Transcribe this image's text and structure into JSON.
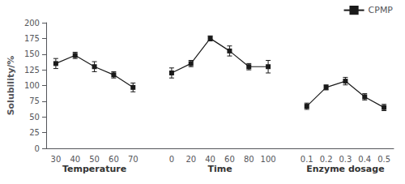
{
  "chart_data": {
    "type": "line",
    "categories": [
      "30",
      "40",
      "50",
      "60",
      "70",
      null,
      "0",
      "20",
      "40",
      "60",
      "80",
      "100",
      null,
      "0.1",
      "0.2",
      "0.3",
      "0.4",
      "0.5"
    ],
    "series": [
      {
        "name": "CPMP",
        "color": "#1a1a1a",
        "marker": "square",
        "values": [
          135,
          148,
          130,
          117,
          97,
          null,
          120,
          135,
          175,
          155,
          130,
          130,
          null,
          67,
          97,
          107,
          82,
          65
        ],
        "errors": [
          8,
          5,
          8,
          5,
          7,
          null,
          8,
          5,
          4,
          8,
          5,
          10,
          null,
          5,
          4,
          6,
          5,
          5
        ]
      }
    ],
    "annotations": [
      "Temperature",
      "Time",
      "Enzyme dosage"
    ],
    "ylabel": "Solubility/%",
    "ylim": [
      0,
      200
    ],
    "yticks": [
      0,
      25,
      50,
      75,
      100,
      125,
      150,
      175,
      200
    ],
    "grid": false,
    "legend": "upper right"
  }
}
